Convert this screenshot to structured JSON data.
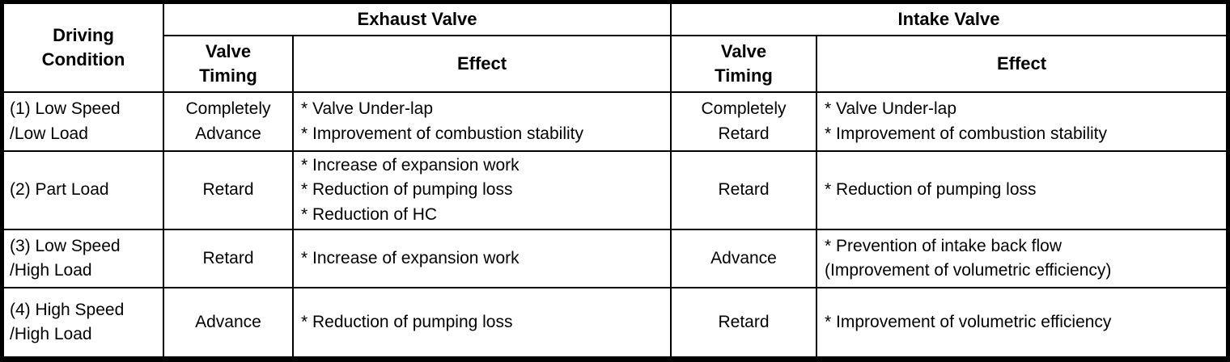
{
  "colors": {
    "border": "#000000",
    "background": "#ffffff",
    "text": "#000000"
  },
  "table": {
    "header": {
      "driving_condition": "Driving\nCondition",
      "exhaust_valve": "Exhaust Valve",
      "intake_valve": "Intake Valve",
      "valve_timing": "Valve\nTiming",
      "effect": "Effect"
    },
    "rows": [
      {
        "condition": "(1) Low Speed\n/Low Load",
        "exhaust_timing": "Completely\nAdvance",
        "exhaust_effects": [
          "* Valve Under-lap",
          "* Improvement of combustion stability"
        ],
        "intake_timing": "Completely\nRetard",
        "intake_effects": [
          "* Valve Under-lap",
          "* Improvement of combustion stability"
        ]
      },
      {
        "condition": "(2) Part Load",
        "exhaust_timing": "Retard",
        "exhaust_effects": [
          "* Increase of expansion work",
          "* Reduction of pumping loss",
          "* Reduction of HC"
        ],
        "intake_timing": "Retard",
        "intake_effects": [
          "* Reduction of pumping loss"
        ]
      },
      {
        "condition": "(3) Low Speed\n/High Load",
        "exhaust_timing": "Retard",
        "exhaust_effects": [
          "* Increase of expansion work"
        ],
        "intake_timing": "Advance",
        "intake_effects": [
          "* Prevention of intake back flow",
          "(Improvement of volumetric efficiency)"
        ]
      },
      {
        "condition": "(4) High Speed\n/High Load",
        "exhaust_timing": "Advance",
        "exhaust_effects": [
          "* Reduction of pumping loss"
        ],
        "intake_timing": "Retard",
        "intake_effects": [
          "* Improvement of volumetric efficiency"
        ]
      }
    ]
  }
}
